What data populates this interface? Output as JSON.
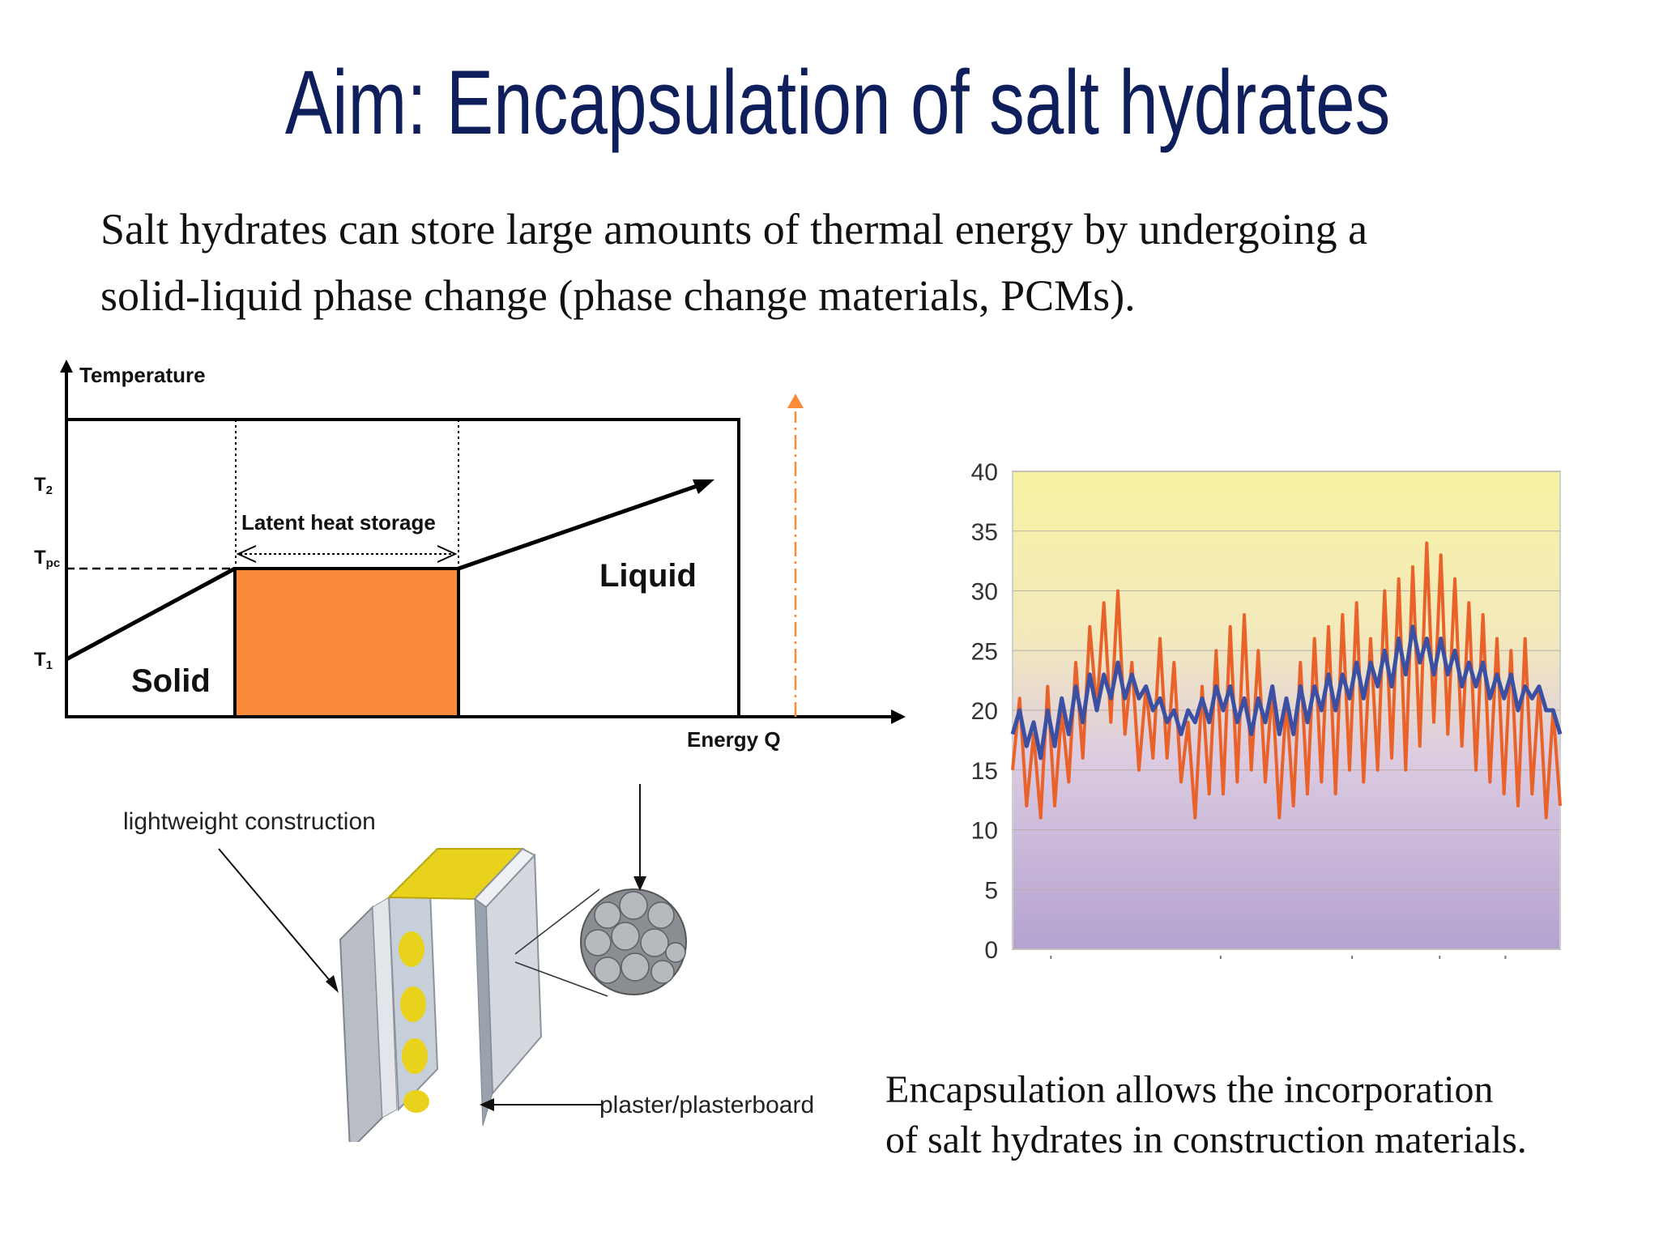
{
  "slide": {
    "title": "Aim: Encapsulation of  salt hydrates",
    "intro_line1": "Salt hydrates can store large amounts of thermal energy by undergoing a",
    "intro_line2": "solid-liquid phase change (phase change materials, PCMs).",
    "caption_line1": "Encapsulation allows the incorporation",
    "caption_line2": "of salt hydrates in construction materials."
  },
  "phase_diagram": {
    "y_axis_label": "Temperature",
    "x_axis_label": "Energy Q",
    "tick_t2": "T",
    "tick_t2_sub": "2",
    "tick_tpc": "T",
    "tick_tpc_sub": "pc",
    "tick_t1": "T",
    "tick_t1_sub": "1",
    "latent_label": "Latent heat storage",
    "solid_label": "Solid",
    "liquid_label": "Liquid",
    "latent_fill_color": "#f98b3a",
    "arrow_color": "#f98b3a"
  },
  "wall_illustration": {
    "label_construction": "lightweight construction",
    "label_plaster": "plaster/plasterboard",
    "insulation_color": "#e8d21c"
  },
  "chart_data": {
    "type": "line",
    "title": "",
    "xlabel": "",
    "ylabel": "",
    "ylim": [
      0,
      40
    ],
    "yticks": [
      0,
      5,
      10,
      15,
      20,
      25,
      30,
      35,
      40
    ],
    "grid": true,
    "legend": "none",
    "series": [
      {
        "color": "#e8622a",
        "values": [
          15,
          21,
          12,
          18,
          11,
          22,
          12,
          20,
          14,
          24,
          16,
          27,
          20,
          29,
          19,
          30,
          18,
          24,
          15,
          22,
          16,
          26,
          16,
          24,
          14,
          19,
          11,
          22,
          13,
          25,
          13,
          27,
          14,
          28,
          15,
          25,
          14,
          22,
          11,
          21,
          12,
          24,
          13,
          26,
          14,
          27,
          13,
          28,
          15,
          29,
          14,
          26,
          15,
          30,
          16,
          31,
          15,
          32,
          17,
          34,
          19,
          33,
          18,
          31,
          17,
          29,
          15,
          28,
          14,
          26,
          13,
          25,
          12,
          26,
          13,
          22,
          11,
          20,
          12
        ]
      },
      {
        "color": "#3b4fa3",
        "values": [
          18,
          20,
          17,
          19,
          16,
          20,
          17,
          21,
          18,
          22,
          19,
          23,
          20,
          23,
          21,
          24,
          21,
          23,
          21,
          22,
          20,
          21,
          19,
          20,
          18,
          20,
          19,
          21,
          19,
          22,
          20,
          22,
          19,
          21,
          18,
          21,
          19,
          22,
          18,
          21,
          18,
          22,
          19,
          22,
          20,
          23,
          20,
          23,
          21,
          24,
          21,
          24,
          22,
          25,
          22,
          26,
          23,
          27,
          24,
          26,
          23,
          26,
          23,
          25,
          22,
          24,
          22,
          24,
          21,
          23,
          21,
          23,
          20,
          22,
          21,
          22,
          20,
          20,
          18
        ]
      }
    ],
    "fill_top": "#f6f2a6",
    "fill_bottom": "#b9a7d3"
  }
}
